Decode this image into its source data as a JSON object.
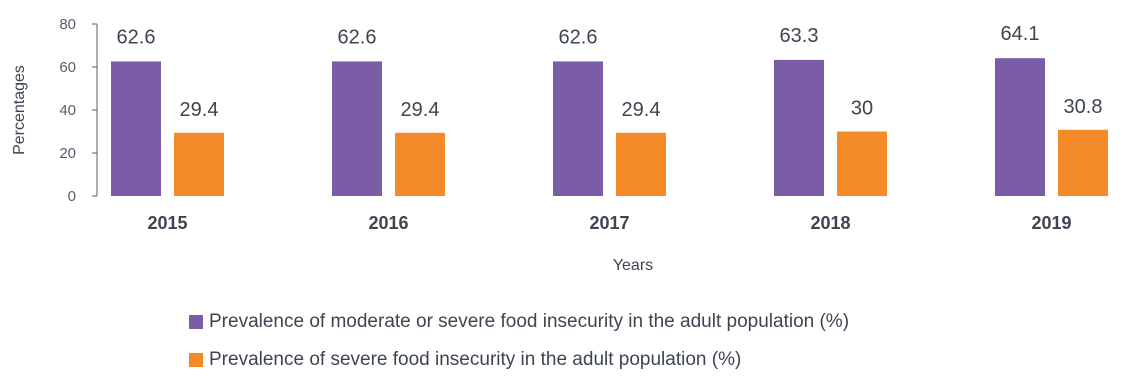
{
  "chart_data": {
    "type": "bar",
    "categories": [
      "2015",
      "2016",
      "2017",
      "2018",
      "2019"
    ],
    "series": [
      {
        "name": "Prevalence of moderate or severe food insecurity in the adult population (%)",
        "values": [
          62.6,
          62.6,
          62.6,
          63.3,
          64.1
        ],
        "color": "#7b5ca7"
      },
      {
        "name": "Prevalence of severe food insecurity in the adult population (%)",
        "values": [
          29.4,
          29.4,
          29.4,
          30,
          30.8
        ],
        "color": "#f58b28"
      }
    ],
    "data_labels": [
      [
        "62.6",
        "62.6",
        "62.6",
        "63.3",
        "64.1"
      ],
      [
        "29.4",
        "29.4",
        "29.4",
        "30",
        "30.8"
      ]
    ],
    "xlabel": "Years",
    "ylabel": "Percentages",
    "ylim": [
      0,
      80
    ],
    "yticks": [
      "0",
      "20",
      "40",
      "60",
      "80"
    ],
    "grid": false,
    "legend_position": "bottom"
  }
}
